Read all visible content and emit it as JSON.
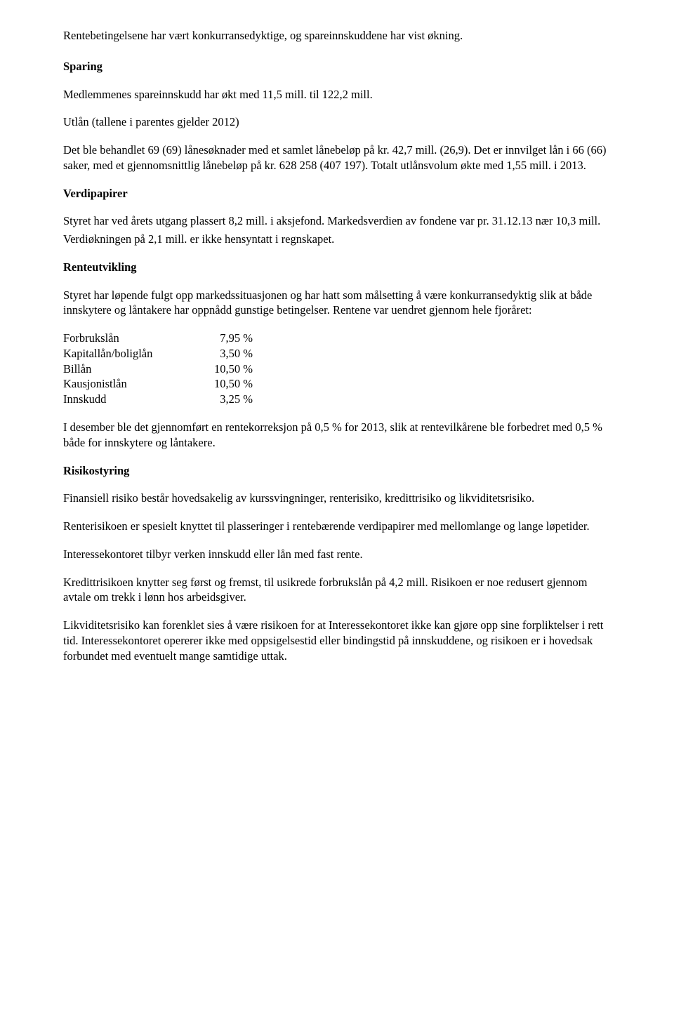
{
  "intro": "Rentebetingelsene har vært konkurransedyktige, og spareinnskuddene har vist økning.",
  "sparing": {
    "heading": "Sparing",
    "p1": "Medlemmenes spareinnskudd har økt med 11,5 mill. til 122,2 mill.",
    "p2": "Utlån (tallene i parentes gjelder 2012)",
    "p3": "Det ble behandlet 69 (69) lånesøknader med et samlet lånebeløp på kr. 42,7 mill. (26,9). Det er innvilget lån i 66 (66) saker, med et gjennomsnittlig lånebeløp på kr. 628 258 (407 197). Totalt utlånsvolum økte med 1,55 mill. i 2013."
  },
  "verdipapirer": {
    "heading": "Verdipapirer",
    "p1": "Styret har ved årets utgang plassert 8,2 mill. i aksjefond. Markedsverdien av fondene var pr. 31.12.13 nær 10,3 mill.",
    "p2": "Verdiøkningen på 2,1 mill. er ikke hensyntatt i regnskapet."
  },
  "renteutvikling": {
    "heading": "Renteutvikling",
    "p1": "Styret har løpende fulgt opp markedssituasjonen og har hatt som målsetting å være konkurransedyktig slik at både innskytere og låntakere har oppnådd gunstige betingelser. Rentene var uendret gjennom hele fjoråret:",
    "rates": [
      {
        "label": "Forbrukslån",
        "value": "7,95 %"
      },
      {
        "label": "Kapitallån/boliglån",
        "value": "3,50 %"
      },
      {
        "label": "Billån",
        "value": "10,50 %"
      },
      {
        "label": "Kausjonistlån",
        "value": "10,50 %"
      },
      {
        "label": "Innskudd",
        "value": "3,25 %"
      }
    ],
    "p2": "I desember ble det gjennomført en rentekorreksjon på 0,5 % for 2013, slik at rentevilkårene ble forbedret med 0,5 % både for innskytere og låntakere."
  },
  "risikostyring": {
    "heading": "Risikostyring",
    "p1": "Finansiell risiko består hovedsakelig av kurssvingninger, renterisiko, kredittrisiko og likviditetsrisiko.",
    "p2": "Renterisikoen er spesielt knyttet til plasseringer i rentebærende verdipapirer med mellomlange og lange løpetider.",
    "p3": "Interessekontoret tilbyr verken innskudd eller lån med fast rente.",
    "p4": "Kredittrisikoen knytter seg først og fremst, til usikrede forbrukslån på 4,2 mill. Risikoen er noe redusert gjennom avtale om trekk i lønn hos arbeidsgiver.",
    "p5": "Likviditetsrisiko kan forenklet sies å være risikoen for at Interessekontoret ikke kan gjøre opp sine forpliktelser i rett tid. Interessekontoret opererer ikke med oppsigelsestid eller bindingstid på innskuddene, og risikoen er i hovedsak forbundet med eventuelt mange samtidige uttak."
  }
}
